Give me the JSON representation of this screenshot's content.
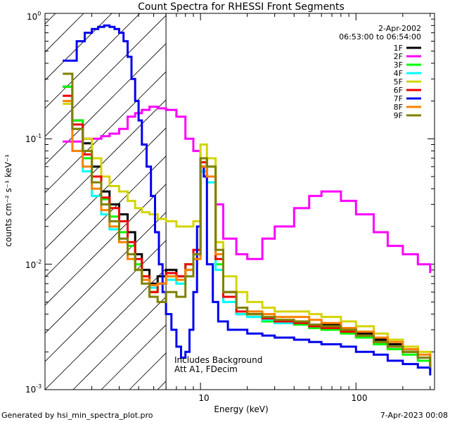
{
  "chart_data": {
    "type": "line",
    "title": "Count Spectra for RHESSI Front Segments",
    "xlabel": "Energy (keV)",
    "ylabel": "counts cm⁻² s⁻¹ keV⁻¹",
    "x_scale": "log",
    "y_scale": "log",
    "xlim": [
      1,
      320
    ],
    "ylim": [
      0.001,
      1.0
    ],
    "x_ticks": [
      {
        "value": 10,
        "label": "10"
      },
      {
        "value": 100,
        "label": "100"
      }
    ],
    "y_ticks": [
      {
        "value": 1.0,
        "label": "10",
        "exp": "0"
      },
      {
        "value": 0.1,
        "label": "10",
        "exp": "-1"
      },
      {
        "value": 0.01,
        "label": "10",
        "exp": "-2"
      },
      {
        "value": 0.001,
        "label": "10",
        "exp": "-3"
      }
    ],
    "date": "2-Apr-2002",
    "time_range": "06:53:00 to 06:54:00",
    "annotation_line1": "Includes Background",
    "annotation_line2": "Att A1, FDecim",
    "attenuator_boundary_kev": 6.0,
    "footer_left": "Generated by hsi_min_spectra_plot.pro",
    "footer_right": "7-Apr-2023 00:08",
    "series": [
      {
        "name": "1F",
        "color": "#000000",
        "x": [
          1.3,
          1.5,
          1.75,
          2.0,
          2.3,
          2.6,
          3.0,
          3.4,
          3.8,
          4.2,
          4.7,
          5.3,
          6.0,
          7.0,
          8.0,
          9.0,
          10.0,
          11.0,
          12.5,
          14,
          17,
          20,
          25,
          30,
          40,
          50,
          60,
          80,
          100,
          130,
          160,
          200,
          250,
          300
        ],
        "y": [
          0.26,
          0.14,
          0.092,
          0.06,
          0.038,
          0.03,
          0.025,
          0.018,
          0.012,
          0.009,
          0.007,
          0.008,
          0.009,
          0.008,
          0.009,
          0.012,
          0.06,
          0.05,
          0.012,
          0.006,
          0.004,
          0.004,
          0.0035,
          0.0034,
          0.0035,
          0.0032,
          0.0033,
          0.003,
          0.0028,
          0.0025,
          0.0023,
          0.002,
          0.0018,
          0.0015
        ]
      },
      {
        "name": "2F",
        "color": "#ff00ff",
        "x": [
          1.3,
          1.5,
          1.75,
          2.0,
          2.3,
          2.6,
          3.0,
          3.4,
          3.8,
          4.2,
          4.7,
          5.3,
          6.0,
          7.0,
          8.0,
          9.0,
          10.0,
          11.0,
          12.5,
          14,
          17,
          20,
          25,
          30,
          40,
          50,
          60,
          80,
          100,
          130,
          160,
          200,
          250,
          300
        ],
        "y": [
          0.095,
          0.095,
          0.1,
          0.1,
          0.105,
          0.11,
          0.12,
          0.15,
          0.16,
          0.17,
          0.18,
          0.175,
          0.17,
          0.15,
          0.1,
          0.08,
          0.07,
          0.06,
          0.03,
          0.016,
          0.012,
          0.011,
          0.016,
          0.02,
          0.028,
          0.035,
          0.038,
          0.032,
          0.025,
          0.018,
          0.014,
          0.012,
          0.01,
          0.0085
        ]
      },
      {
        "name": "3F",
        "color": "#00ff00",
        "x": [
          1.3,
          1.5,
          1.75,
          2.0,
          2.3,
          2.6,
          3.0,
          3.4,
          3.8,
          4.2,
          4.7,
          5.3,
          6.0,
          7.0,
          8.0,
          9.0,
          10.0,
          11.0,
          12.5,
          14,
          17,
          20,
          25,
          30,
          40,
          50,
          60,
          80,
          100,
          130,
          160,
          200,
          250,
          300
        ],
        "y": [
          0.26,
          0.14,
          0.07,
          0.05,
          0.033,
          0.024,
          0.018,
          0.014,
          0.01,
          0.008,
          0.006,
          0.007,
          0.008,
          0.007,
          0.01,
          0.012,
          0.07,
          0.06,
          0.01,
          0.005,
          0.004,
          0.0038,
          0.0035,
          0.0034,
          0.0033,
          0.0031,
          0.003,
          0.0028,
          0.0026,
          0.0023,
          0.0021,
          0.0019,
          0.0017,
          0.0014
        ]
      },
      {
        "name": "4F",
        "color": "#00ffff",
        "x": [
          1.3,
          1.5,
          1.75,
          2.0,
          2.3,
          2.6,
          3.0,
          3.4,
          3.8,
          4.2,
          4.7,
          5.3,
          6.0,
          7.0,
          8.0,
          9.0,
          10.0,
          11.0,
          12.5,
          14,
          17,
          20,
          25,
          30,
          40,
          50,
          60,
          80,
          100,
          130,
          160,
          200,
          250,
          300
        ],
        "y": [
          0.2,
          0.12,
          0.055,
          0.035,
          0.025,
          0.019,
          0.016,
          0.012,
          0.009,
          0.0075,
          0.0065,
          0.007,
          0.0075,
          0.007,
          0.009,
          0.011,
          0.055,
          0.045,
          0.009,
          0.005,
          0.004,
          0.0038,
          0.0036,
          0.0034,
          0.0034,
          0.0032,
          0.0031,
          0.0029,
          0.0027,
          0.0024,
          0.0022,
          0.002,
          0.0018,
          0.0015
        ]
      },
      {
        "name": "5F",
        "color": "#d4d400",
        "x": [
          1.3,
          1.5,
          1.75,
          2.0,
          2.3,
          2.6,
          3.0,
          3.4,
          3.8,
          4.2,
          4.7,
          5.3,
          6.0,
          7.0,
          8.0,
          9.0,
          10.0,
          11.0,
          12.5,
          14,
          17,
          20,
          25,
          30,
          40,
          50,
          60,
          80,
          100,
          130,
          160,
          200,
          250,
          300
        ],
        "y": [
          0.19,
          0.13,
          0.1,
          0.07,
          0.05,
          0.042,
          0.038,
          0.032,
          0.028,
          0.026,
          0.025,
          0.023,
          0.022,
          0.02,
          0.02,
          0.022,
          0.09,
          0.07,
          0.015,
          0.008,
          0.006,
          0.005,
          0.0045,
          0.0042,
          0.0042,
          0.004,
          0.0038,
          0.0035,
          0.0032,
          0.0028,
          0.0025,
          0.0022,
          0.002,
          0.0017
        ]
      },
      {
        "name": "6F",
        "color": "#ee0000",
        "x": [
          1.3,
          1.5,
          1.75,
          2.0,
          2.3,
          2.6,
          3.0,
          3.4,
          3.8,
          4.2,
          4.7,
          5.3,
          6.0,
          7.0,
          8.0,
          9.0,
          10.0,
          11.0,
          12.5,
          14,
          17,
          20,
          25,
          30,
          40,
          50,
          60,
          80,
          100,
          130,
          160,
          200,
          250,
          300
        ],
        "y": [
          0.22,
          0.13,
          0.075,
          0.05,
          0.034,
          0.028,
          0.022,
          0.015,
          0.011,
          0.008,
          0.006,
          0.007,
          0.0085,
          0.008,
          0.01,
          0.013,
          0.065,
          0.05,
          0.011,
          0.0055,
          0.0042,
          0.004,
          0.0037,
          0.0035,
          0.0034,
          0.0032,
          0.0031,
          0.0029,
          0.0027,
          0.0024,
          0.0022,
          0.002,
          0.0018,
          0.0015
        ]
      },
      {
        "name": "7F",
        "color": "#0000ee",
        "x": [
          1.3,
          1.45,
          1.6,
          1.8,
          2.0,
          2.2,
          2.4,
          2.6,
          2.8,
          3.0,
          3.2,
          3.4,
          3.6,
          3.8,
          4.0,
          4.2,
          4.5,
          4.8,
          5.1,
          5.4,
          5.7,
          6.0,
          6.5,
          7.0,
          7.5,
          8.0,
          8.5,
          9.0,
          9.5,
          10.0,
          10.5,
          11.0,
          12,
          13,
          15,
          17,
          20,
          25,
          30,
          40,
          50,
          60,
          80,
          100,
          130,
          160,
          200,
          250,
          300
        ],
        "y": [
          0.42,
          0.42,
          0.6,
          0.7,
          0.75,
          0.78,
          0.8,
          0.78,
          0.75,
          0.7,
          0.6,
          0.45,
          0.3,
          0.2,
          0.14,
          0.09,
          0.06,
          0.035,
          0.018,
          0.01,
          0.006,
          0.004,
          0.003,
          0.0022,
          0.0018,
          0.002,
          0.003,
          0.006,
          0.02,
          0.06,
          0.05,
          0.01,
          0.005,
          0.0035,
          0.003,
          0.003,
          0.0028,
          0.0027,
          0.0026,
          0.0025,
          0.0024,
          0.0023,
          0.0022,
          0.002,
          0.0019,
          0.0017,
          0.0016,
          0.0015,
          0.0013
        ]
      },
      {
        "name": "8F",
        "color": "#ff8000",
        "x": [
          1.3,
          1.5,
          1.75,
          2.0,
          2.3,
          2.6,
          3.0,
          3.4,
          3.8,
          4.2,
          4.7,
          5.3,
          6.0,
          7.0,
          8.0,
          9.0,
          10.0,
          11.0,
          12.5,
          14,
          17,
          20,
          25,
          30,
          40,
          50,
          60,
          80,
          100,
          130,
          160,
          200,
          250,
          300
        ],
        "y": [
          0.2,
          0.08,
          0.06,
          0.04,
          0.027,
          0.02,
          0.015,
          0.011,
          0.009,
          0.0075,
          0.0068,
          0.007,
          0.008,
          0.0075,
          0.009,
          0.011,
          0.06,
          0.05,
          0.012,
          0.006,
          0.0045,
          0.0042,
          0.004,
          0.0038,
          0.0038,
          0.0036,
          0.0034,
          0.0031,
          0.0029,
          0.0026,
          0.0024,
          0.0021,
          0.0019,
          0.0016
        ]
      },
      {
        "name": "9F",
        "color": "#808000",
        "x": [
          1.3,
          1.5,
          1.75,
          2.0,
          2.3,
          2.6,
          3.0,
          3.4,
          3.8,
          4.2,
          4.7,
          5.3,
          6.0,
          7.0,
          8.0,
          9.0,
          10.0,
          11.0,
          12.5,
          14,
          17,
          20,
          25,
          30,
          40,
          50,
          60,
          80,
          100,
          130,
          160,
          200,
          250,
          300
        ],
        "y": [
          0.33,
          0.12,
          0.08,
          0.045,
          0.03,
          0.022,
          0.016,
          0.012,
          0.009,
          0.007,
          0.0055,
          0.005,
          0.006,
          0.0055,
          0.008,
          0.012,
          0.07,
          0.06,
          0.013,
          0.006,
          0.0045,
          0.004,
          0.0038,
          0.0036,
          0.0035,
          0.0033,
          0.0032,
          0.003,
          0.0027,
          0.0024,
          0.0022,
          0.002,
          0.0018,
          0.0015
        ]
      }
    ]
  }
}
